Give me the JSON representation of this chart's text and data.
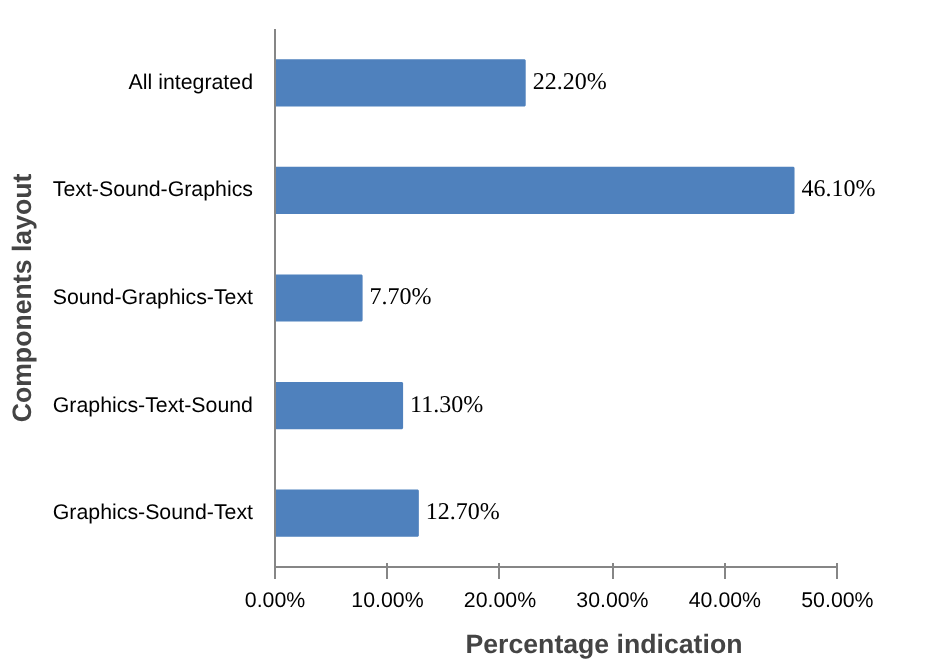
{
  "chart_data": {
    "type": "bar",
    "orientation": "horizontal",
    "xlabel": "Percentage indication",
    "ylabel": "Components layout",
    "categories": [
      "All integrated",
      "Text-Sound-Graphics",
      "Sound-Graphics-Text",
      "Graphics-Text-Sound",
      "Graphics-Sound-Text"
    ],
    "values": [
      22.2,
      46.1,
      7.7,
      11.3,
      12.7
    ],
    "value_labels": [
      "22.20%",
      "46.10%",
      "7.70%",
      "11.30%",
      "12.70%"
    ],
    "color": "#4f81bd",
    "xlim": [
      0,
      50
    ],
    "xticks": [
      {
        "value": 0,
        "label": "0.00%"
      },
      {
        "value": 10,
        "label": "10.00%"
      },
      {
        "value": 20,
        "label": "20.00%"
      },
      {
        "value": 30,
        "label": "30.00%"
      },
      {
        "value": 40,
        "label": "40.00%"
      },
      {
        "value": 50,
        "label": "50.00%"
      }
    ],
    "grid": false
  }
}
